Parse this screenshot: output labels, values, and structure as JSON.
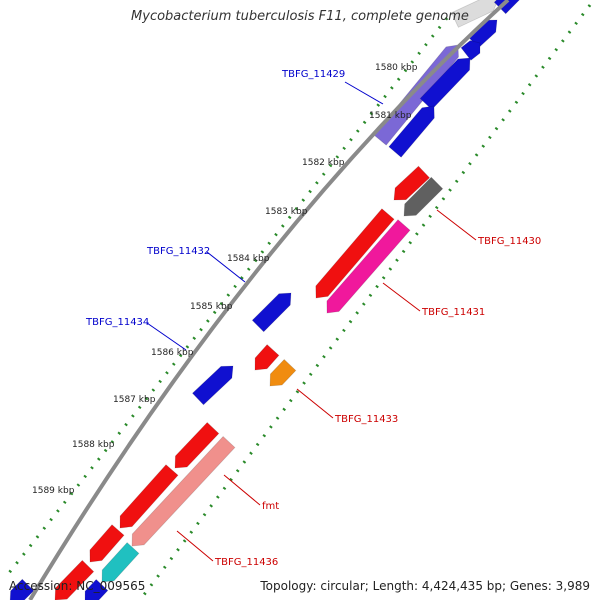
{
  "title": "Mycobacterium tuberculosis F11, complete genome",
  "footer": {
    "accession": "Accession: NC_009565",
    "topology": "Topology: circular; Length: 4,424,435 bp; Genes: 3,989"
  },
  "colors": {
    "backbone": "#808080",
    "tick": "#2a8a2a",
    "forward_label": "#0000cc",
    "reverse_label": "#cc0000"
  },
  "scale": {
    "unit": "kbp",
    "ticks": [
      "1580 kbp",
      "1581 kbp",
      "1582 kbp",
      "1583 kbp",
      "1584 kbp",
      "1585 kbp",
      "1586 kbp",
      "1587 kbp",
      "1588 kbp",
      "1589 kbp"
    ]
  },
  "gene_labels": [
    {
      "name": "TBFG_11429",
      "strand": "forward"
    },
    {
      "name": "TBFG_11432",
      "strand": "forward"
    },
    {
      "name": "TBFG_11434",
      "strand": "forward"
    },
    {
      "name": "TBFG_11430",
      "strand": "reverse"
    },
    {
      "name": "TBFG_11431",
      "strand": "reverse"
    },
    {
      "name": "TBFG_11433",
      "strand": "reverse"
    },
    {
      "name": "fmt",
      "strand": "reverse"
    },
    {
      "name": "TBFG_11436",
      "strand": "reverse"
    }
  ]
}
